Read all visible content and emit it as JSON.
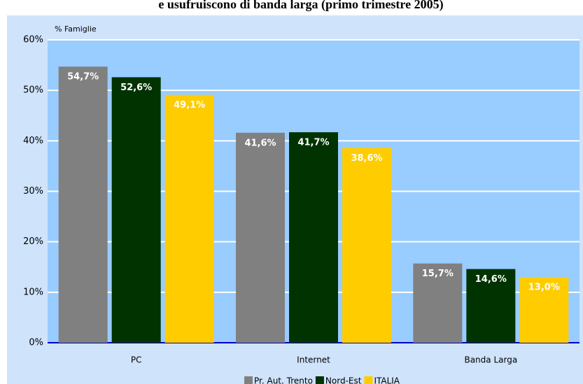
{
  "chart_data": {
    "type": "bar",
    "title": "e usufruiscono di banda larga (primo trimestre 2005)",
    "ylabel": "% Famiglie",
    "categories": [
      "PC",
      "Internet",
      "Banda Larga"
    ],
    "series": [
      {
        "name": "Pr. Aut. Trento",
        "color": "#808080",
        "values": [
          54.7,
          41.6,
          15.7
        ],
        "value_labels": [
          "54,7%",
          "41,6%",
          "15,7%"
        ]
      },
      {
        "name": "Nord-Est",
        "color": "#003300",
        "values": [
          52.6,
          41.7,
          14.6
        ],
        "value_labels": [
          "52,6%",
          "41,7%",
          "14,6%"
        ]
      },
      {
        "name": "ITALIA",
        "color": "#ffcc00",
        "values": [
          49.1,
          38.6,
          13.0
        ],
        "value_labels": [
          "49,1%",
          "38,6%",
          "13,0%"
        ]
      }
    ],
    "ylim": [
      0,
      60
    ],
    "yticks": [
      {
        "value": 0,
        "label": "0%"
      },
      {
        "value": 10,
        "label": "10%"
      },
      {
        "value": 20,
        "label": "20%"
      },
      {
        "value": 30,
        "label": "30%"
      },
      {
        "value": 40,
        "label": "40%"
      },
      {
        "value": 50,
        "label": "50%"
      },
      {
        "value": 60,
        "label": "60%"
      }
    ],
    "grid": true
  }
}
